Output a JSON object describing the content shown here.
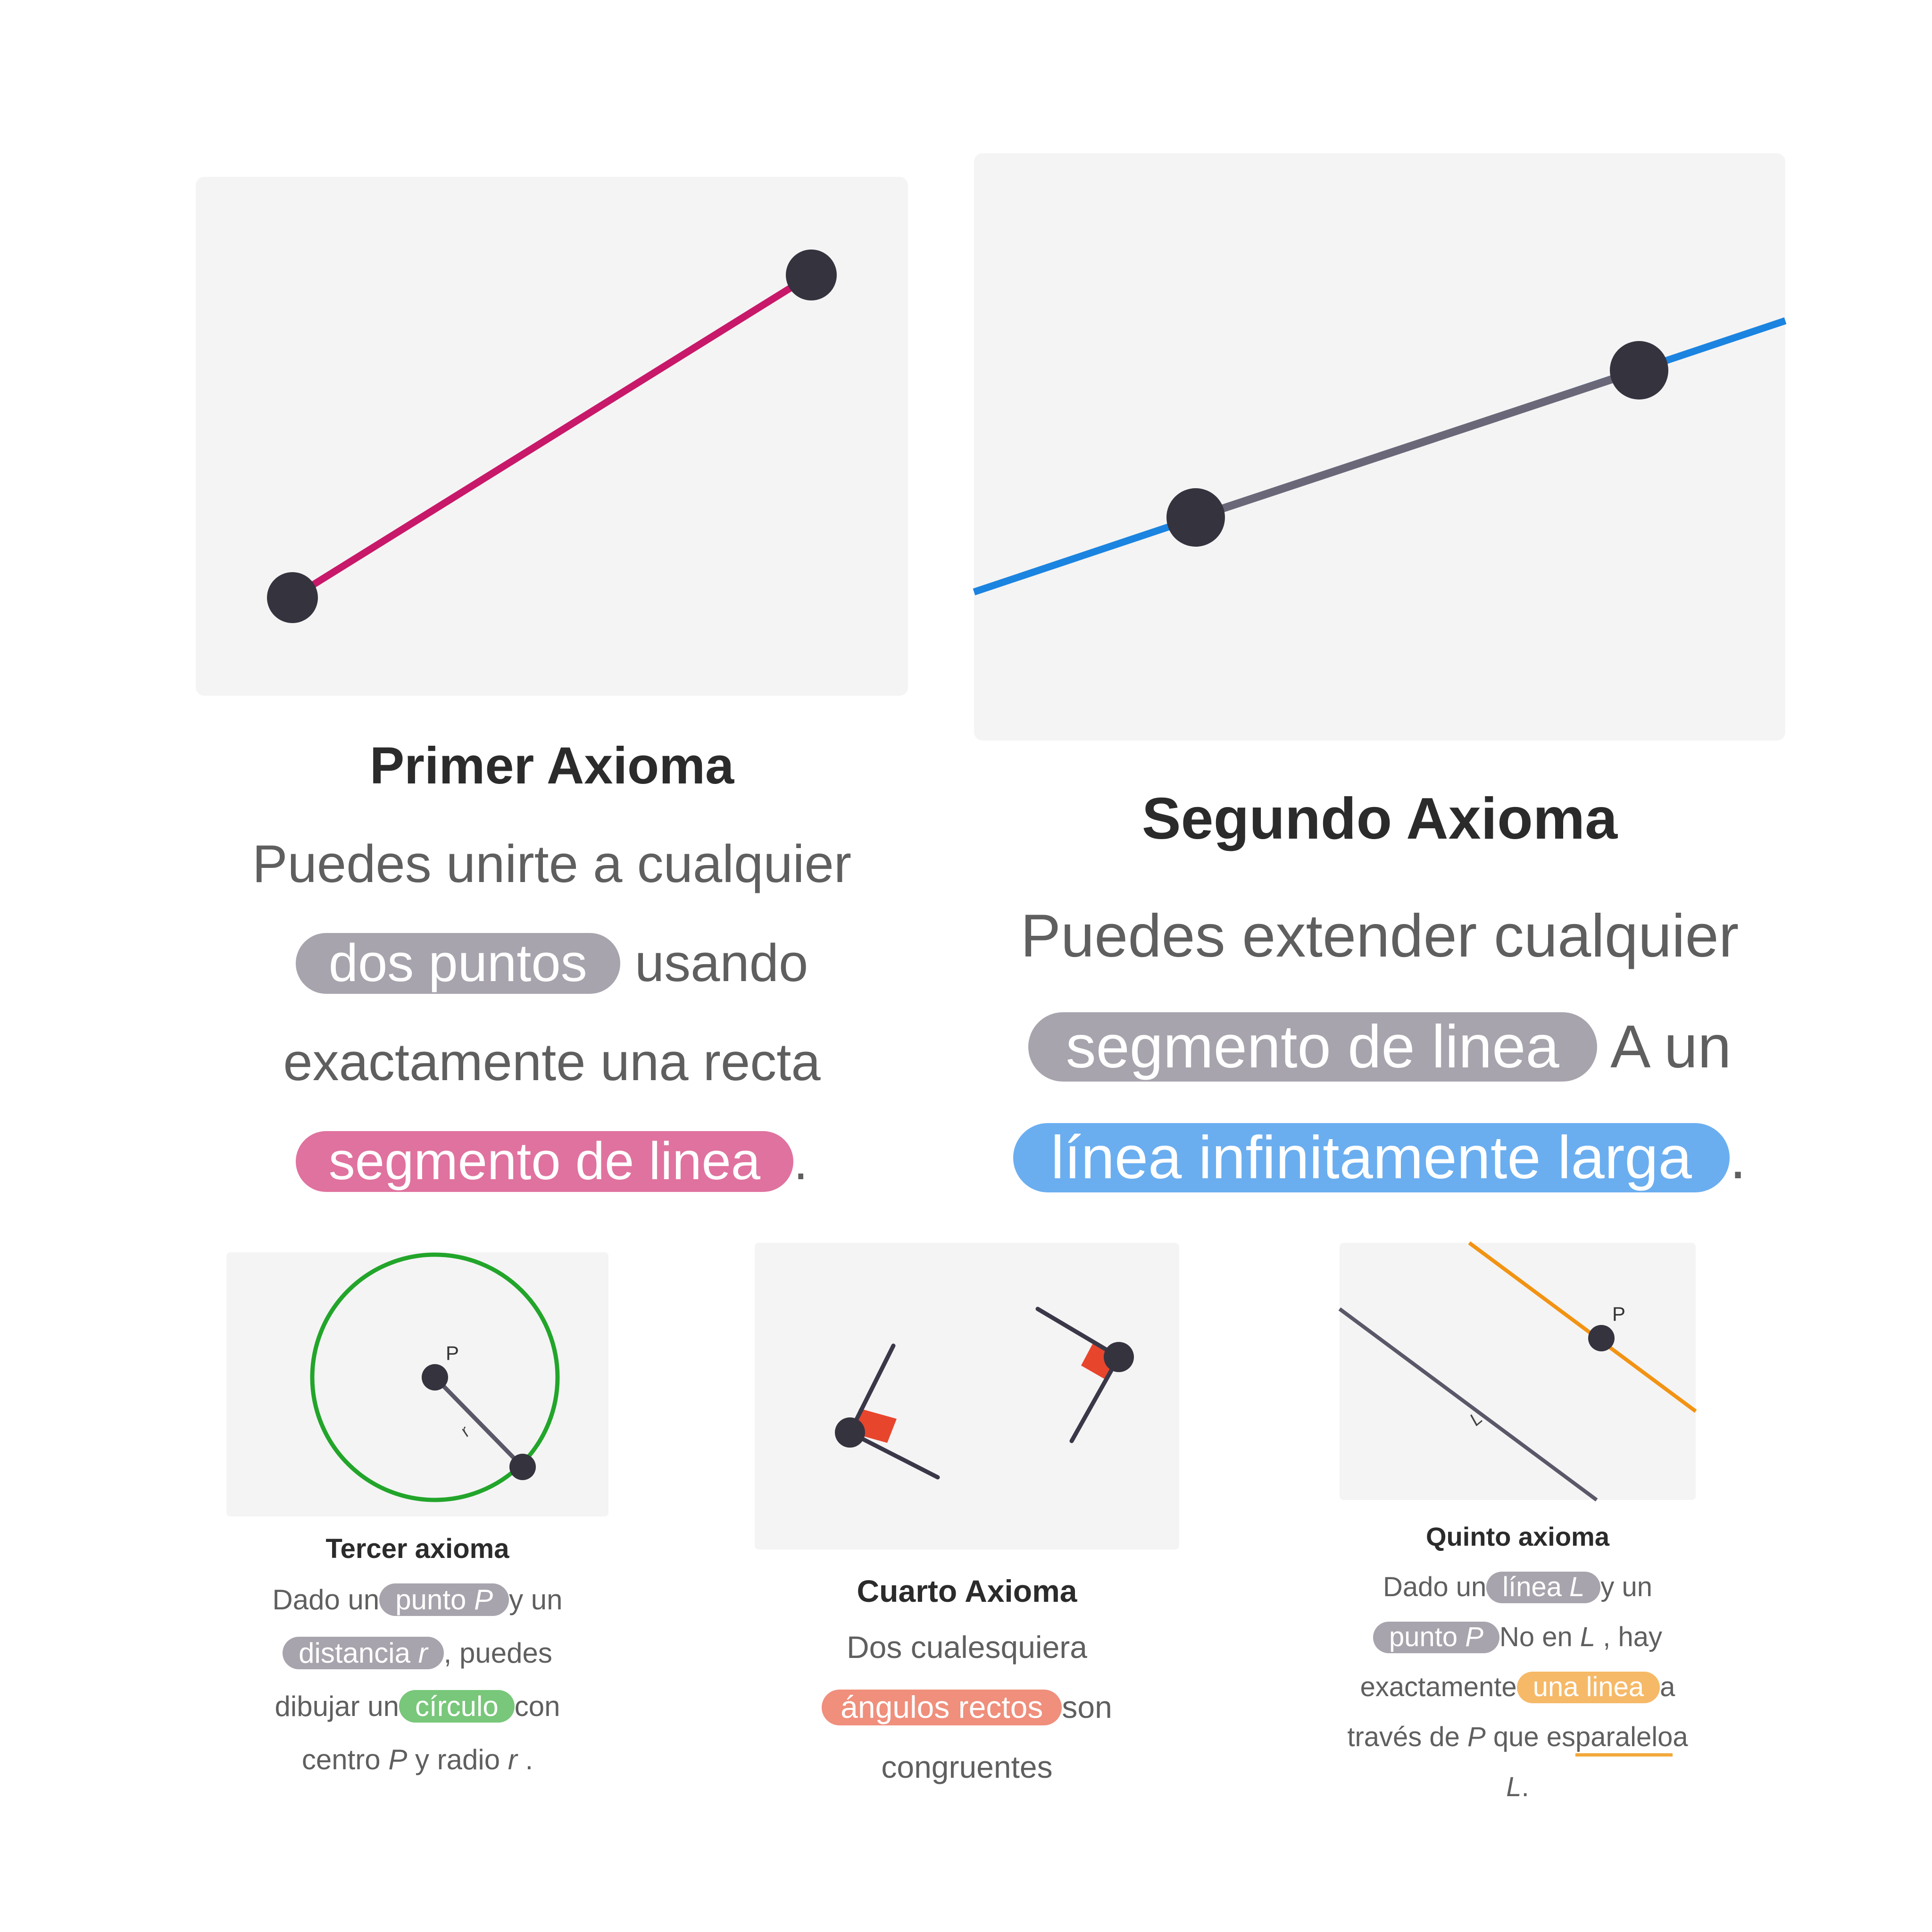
{
  "axiom1": {
    "title": "Primer Axioma",
    "t1": "Puedes unirte a cualquier",
    "pill_points": "dos puntos",
    "t2": "usando",
    "t3": "exactamente una recta",
    "pill_segment": "segmento de linea",
    "t4": ".",
    "colors": {
      "segment": "#c8186a",
      "point": "#35333e"
    }
  },
  "axiom2": {
    "title": "Segundo Axioma",
    "t1": "Puedes extender cualquier",
    "pill_segment": "segmento de linea",
    "t2": "A un",
    "pill_line": "línea infinitamente larga",
    "t3": ".",
    "colors": {
      "line": "#1b84e0",
      "segment": "#6a6878",
      "point": "#35333e"
    }
  },
  "axiom3": {
    "title": "Tercer axioma",
    "t1": "Dado un",
    "pill_point": "punto",
    "var_p": "P",
    "t2": "y un",
    "pill_distance": "distancia",
    "var_r": "r",
    "t3": ", puedes",
    "t4": "dibujar un",
    "pill_circle": "círculo",
    "t5": "con",
    "t6": "centro",
    "var_p2": "P",
    "t7": "y radio",
    "var_r2": "r",
    "t8": ".",
    "label_p": "P",
    "label_r": "r",
    "colors": {
      "circle": "#22a52a",
      "radius": "#5a5868",
      "point": "#35333e"
    }
  },
  "axiom4": {
    "title": "Cuarto Axioma",
    "t1": "Dos cualesquiera",
    "pill_angles": "ángulos rectos",
    "t2": "son",
    "t3": "congruentes",
    "colors": {
      "marker": "#e8452d",
      "line": "#3a3848"
    }
  },
  "axiom5": {
    "title": "Quinto axioma",
    "t1": "Dado un",
    "pill_line": "línea",
    "var_l": "L",
    "t2": "y un",
    "pill_point": "punto",
    "var_p": "P",
    "t3": "No en",
    "var_l2": "L",
    "t4": ", hay",
    "t5": "exactamente",
    "pill_one_line": "una linea",
    "t6": "a",
    "t7": "través de",
    "var_p2": "P",
    "t8": "que es",
    "t9": "paralelo",
    "t10": "a",
    "var_l3": "L",
    "t11": ".",
    "label_p": "P",
    "label_l": "L",
    "colors": {
      "parallel": "#f29313",
      "line": "#5a5868",
      "point": "#35333e"
    }
  }
}
